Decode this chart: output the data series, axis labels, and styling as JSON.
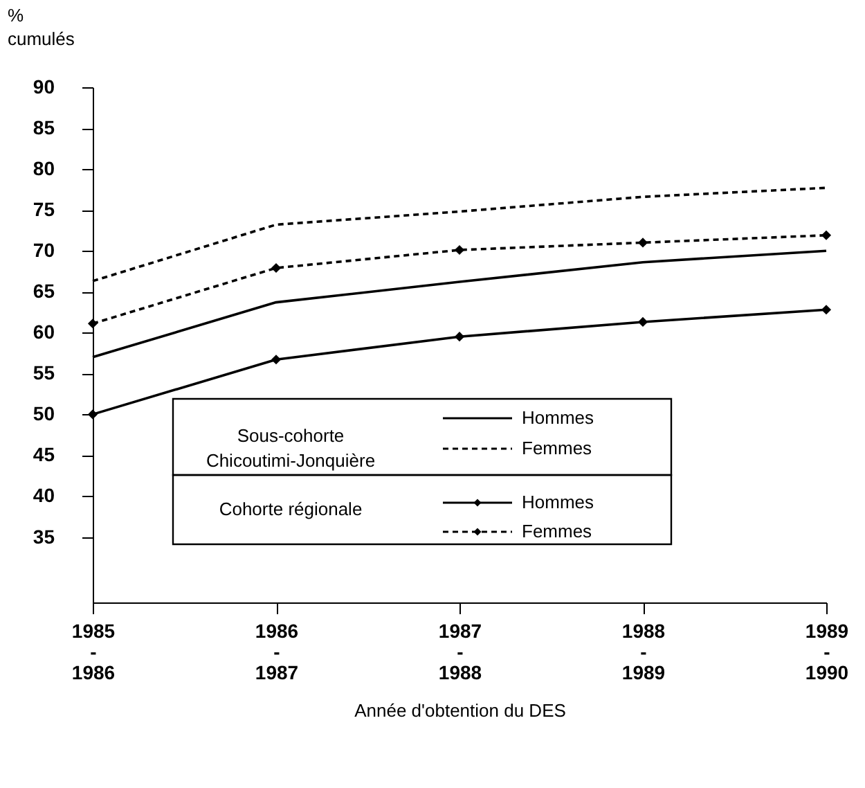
{
  "chart_data": {
    "type": "line",
    "xlabel": "Année d'obtention du DES",
    "ylabel": "%\ncumulés",
    "categories": [
      "1985\n-\n1986",
      "1986\n-\n1987",
      "1987\n-\n1988",
      "1988\n-\n1989",
      "1989\n-\n1990"
    ],
    "series": [
      {
        "name": "Hommes",
        "color": "#000000",
        "line_style": "solid",
        "marker": "none",
        "values": [
          57,
          63.7,
          66.2,
          68.6,
          70
        ]
      },
      {
        "name": "Femmes",
        "color": "#000000",
        "line_style": "dashed",
        "marker": "none",
        "values": [
          66.3,
          73.2,
          74.8,
          76.6,
          77.7
        ]
      },
      {
        "name": "Hommes",
        "color": "#000000",
        "line_style": "solid",
        "marker": "diamond",
        "values": [
          50,
          56.7,
          59.5,
          61.3,
          62.8
        ]
      },
      {
        "name": "Femmes",
        "color": "#000000",
        "line_style": "dashed",
        "marker": "diamond",
        "values": [
          61.1,
          67.9,
          70.1,
          71.0,
          71.9
        ]
      }
    ],
    "annotations": [
      "Sous-cohorte\nChicoutimi-Jonquière",
      "Cohorte régionale"
    ],
    "ylim": [
      27,
      90
    ],
    "yticks": [
      35,
      40,
      45,
      50,
      55,
      60,
      65,
      70,
      75,
      80,
      85,
      90
    ],
    "grid": false,
    "legend": "bottom"
  }
}
